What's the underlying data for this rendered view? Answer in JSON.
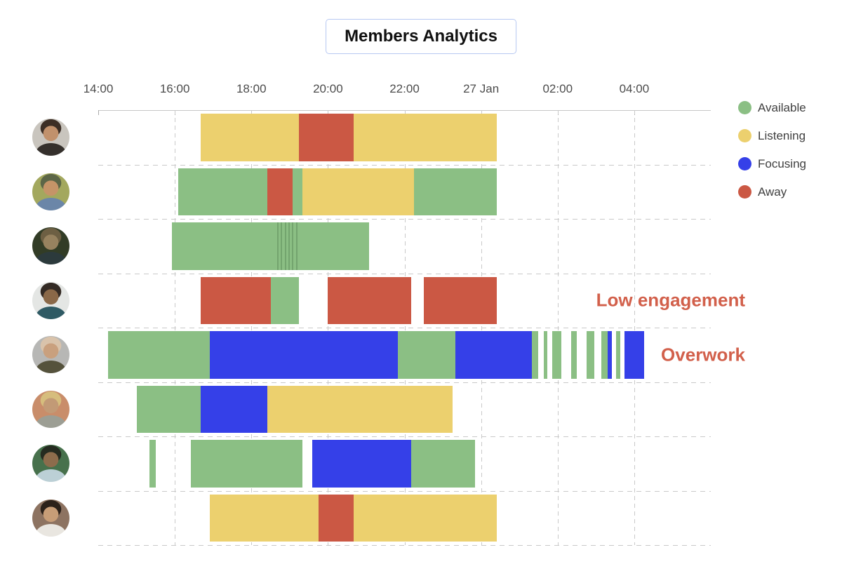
{
  "header": {
    "title": "Members Analytics"
  },
  "chart_data": {
    "type": "gantt",
    "title": "Members Analytics",
    "grid": "dashed",
    "legend_position": "top-right",
    "time_axis": {
      "hours_span": 16,
      "range_start": "14:00",
      "ticks": [
        {
          "label": "14:00",
          "h": 0
        },
        {
          "label": "16:00",
          "h": 2
        },
        {
          "label": "18:00",
          "h": 4
        },
        {
          "label": "20:00",
          "h": 6
        },
        {
          "label": "22:00",
          "h": 8
        },
        {
          "label": "27 Jan",
          "h": 10
        },
        {
          "label": "02:00",
          "h": 12
        },
        {
          "label": "04:00",
          "h": 14
        }
      ]
    },
    "statuses": {
      "available": {
        "label": "Available",
        "color": "#8bbf84"
      },
      "listening": {
        "label": "Listening",
        "color": "#ecd06e"
      },
      "focusing": {
        "label": "Focusing",
        "color": "#3540e8"
      },
      "away": {
        "label": "Away",
        "color": "#cb5844"
      }
    },
    "annotation_color": "#d2604b",
    "annotations": [
      {
        "text": "Low engagement",
        "member_index": 3
      },
      {
        "text": "Overwork",
        "member_index": 4
      }
    ],
    "members": [
      {
        "avatar": {
          "bg": "#c9c5be",
          "hair": "#3c2e25",
          "skin": "#c1916c",
          "shirt": "#35302c"
        },
        "segments": [
          {
            "status": "listening",
            "start": "16:40",
            "end": "19:15"
          },
          {
            "status": "away",
            "start": "19:15",
            "end": "20:40"
          },
          {
            "status": "listening",
            "start": "20:40",
            "end": "00:25"
          }
        ]
      },
      {
        "avatar": {
          "bg": "#a3a85e",
          "hair": "#5c6647",
          "skin": "#c59468",
          "shirt": "#6b86a8"
        },
        "segments": [
          {
            "status": "available",
            "start": "16:05",
            "end": "18:25"
          },
          {
            "status": "away",
            "start": "18:25",
            "end": "19:05"
          },
          {
            "status": "available",
            "start": "19:05",
            "end": "19:20"
          },
          {
            "status": "listening",
            "start": "19:20",
            "end": "22:15"
          },
          {
            "status": "available",
            "start": "22:15",
            "end": "00:25"
          }
        ]
      },
      {
        "avatar": {
          "bg": "#323c26",
          "hair": "#6d5f43",
          "skin": "#97825f",
          "shirt": "#2c3a3c"
        },
        "seams": [
          "18:40",
          "18:46",
          "18:52",
          "18:58",
          "19:04",
          "19:10"
        ],
        "segments": [
          {
            "status": "available",
            "start": "15:55",
            "end": "21:05"
          }
        ]
      },
      {
        "avatar": {
          "bg": "#e4e6e4",
          "hair": "#332a24",
          "skin": "#8a6848",
          "shirt": "#2f5a64"
        },
        "segments": [
          {
            "status": "away",
            "start": "16:40",
            "end": "18:30"
          },
          {
            "status": "available",
            "start": "18:30",
            "end": "19:15"
          },
          {
            "status": "away",
            "start": "20:00",
            "end": "22:10"
          },
          {
            "status": "away",
            "start": "22:30",
            "end": "00:25"
          }
        ]
      },
      {
        "avatar": {
          "bg": "#b7b7b5",
          "hair": "#d9c3ab",
          "skin": "#c9a07e",
          "shirt": "#55523c"
        },
        "segments": [
          {
            "status": "available",
            "start": "14:15",
            "end": "16:55"
          },
          {
            "status": "focusing",
            "start": "16:55",
            "end": "21:50"
          },
          {
            "status": "available",
            "start": "21:50",
            "end": "23:20"
          },
          {
            "status": "focusing",
            "start": "23:20",
            "end": "01:20"
          },
          {
            "status": "available",
            "start": "01:20",
            "end": "01:30"
          },
          {
            "status": "available",
            "start": "01:38",
            "end": "01:44"
          },
          {
            "status": "available",
            "start": "01:52",
            "end": "02:06"
          },
          {
            "status": "available",
            "start": "02:21",
            "end": "02:30"
          },
          {
            "status": "available",
            "start": "02:45",
            "end": "02:57"
          },
          {
            "status": "available",
            "start": "03:08",
            "end": "03:18"
          },
          {
            "status": "focusing",
            "start": "03:18",
            "end": "03:25"
          },
          {
            "status": "available",
            "start": "03:32",
            "end": "03:38"
          },
          {
            "status": "focusing",
            "start": "03:45",
            "end": "04:15"
          }
        ]
      },
      {
        "avatar": {
          "bg": "#c98d6a",
          "hair": "#d6bd7d",
          "skin": "#c29a76",
          "shirt": "#9c9e94"
        },
        "segments": [
          {
            "status": "available",
            "start": "15:00",
            "end": "16:40"
          },
          {
            "status": "focusing",
            "start": "16:40",
            "end": "18:25"
          },
          {
            "status": "listening",
            "start": "18:25",
            "end": "23:15"
          }
        ]
      },
      {
        "avatar": {
          "bg": "#47714c",
          "hair": "#252b20",
          "skin": "#8d6c4c",
          "shirt": "#bcd0d6"
        },
        "segments": [
          {
            "status": "available",
            "start": "15:20",
            "end": "15:30"
          },
          {
            "status": "available",
            "start": "16:25",
            "end": "19:20"
          },
          {
            "status": "focusing",
            "start": "19:35",
            "end": "22:10"
          },
          {
            "status": "available",
            "start": "22:10",
            "end": "23:50"
          }
        ]
      },
      {
        "avatar": {
          "bg": "#8d7361",
          "hair": "#2b211a",
          "skin": "#c79d77",
          "shirt": "#e9e6e0"
        },
        "segments": [
          {
            "status": "listening",
            "start": "16:55",
            "end": "19:45"
          },
          {
            "status": "away",
            "start": "19:45",
            "end": "20:40"
          },
          {
            "status": "listening",
            "start": "20:40",
            "end": "00:25"
          }
        ]
      }
    ]
  }
}
